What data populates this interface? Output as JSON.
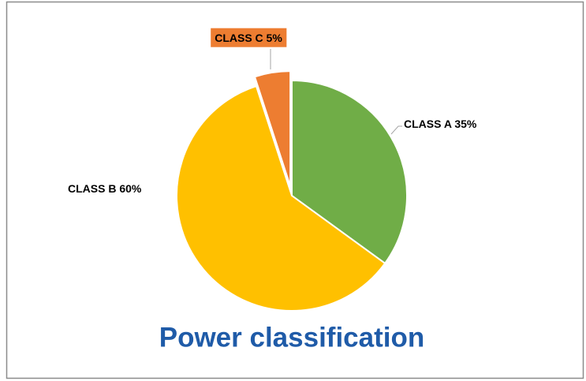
{
  "chart_data": {
    "type": "pie",
    "title": "Power classification",
    "categories": [
      "CLASS A",
      "CLASS B",
      "CLASS C"
    ],
    "values": [
      35,
      60,
      5
    ],
    "value_labels": [
      "35%",
      "60%",
      "5%"
    ],
    "colors": [
      "#70ad47",
      "#ffc000",
      "#ed7d31"
    ]
  }
}
